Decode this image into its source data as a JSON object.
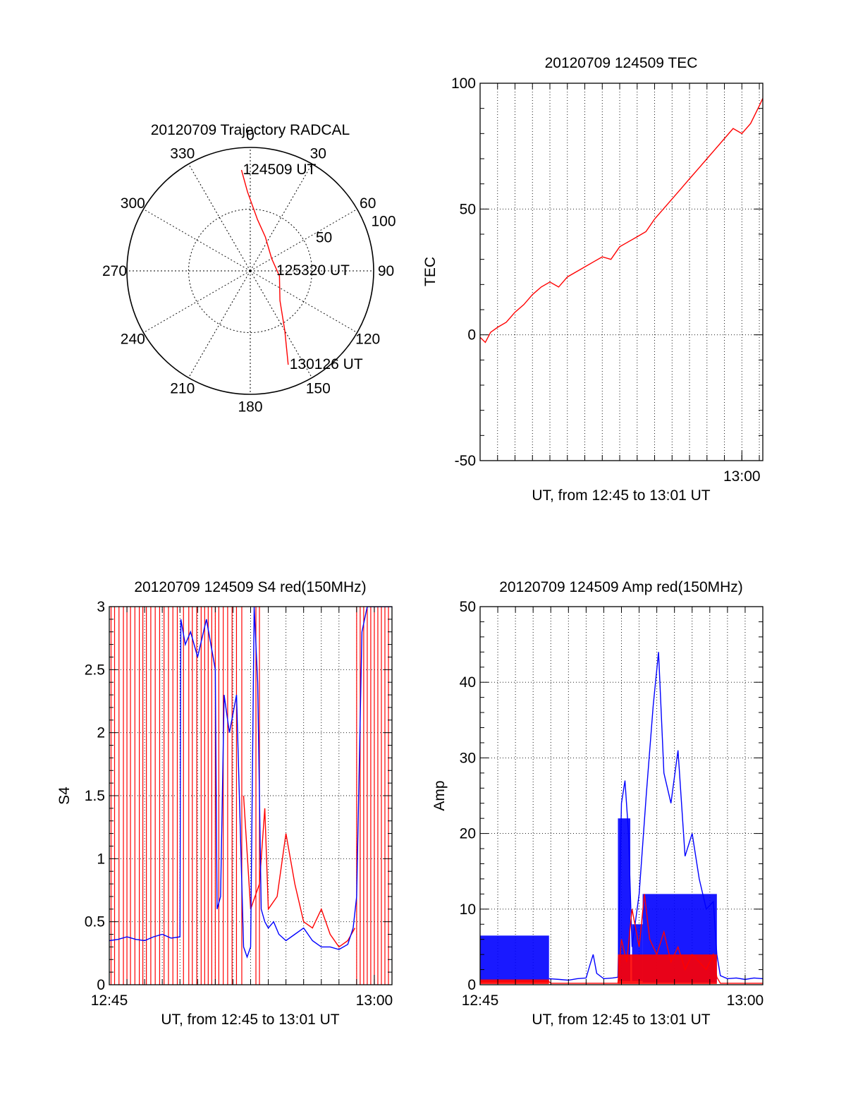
{
  "chart_data": [
    {
      "id": "polar",
      "type": "polar",
      "title": "20120709 Trajectory RADCAL",
      "azimuth_ticks": [
        "0",
        "30",
        "60",
        "90",
        "120",
        "150",
        "180",
        "210",
        "240",
        "270",
        "300",
        "330"
      ],
      "radial_ticks": [
        "50",
        "100"
      ],
      "rlim": [
        0,
        100
      ],
      "grid": true,
      "series": [
        {
          "color": "#ff0000",
          "points": [
            [
              -5,
              82
            ],
            [
              -2,
              64
            ],
            [
              8,
              42
            ],
            [
              24,
              30
            ],
            [
              60,
              20
            ],
            [
              100,
              24
            ],
            [
              135,
              34
            ],
            [
              150,
              56
            ],
            [
              158,
              82
            ]
          ]
        }
      ],
      "annotations": [
        {
          "text": "124509 UT",
          "az": -5,
          "r": 82
        },
        {
          "text": "125320 UT",
          "az": 90,
          "r": 20
        },
        {
          "text": "130126 UT",
          "az": 158,
          "r": 82
        }
      ]
    },
    {
      "id": "tec",
      "type": "line",
      "title": "20120709 124509 TEC",
      "xlabel": "UT, from 12:45 to 13:01 UT",
      "ylabel": "TEC",
      "xlim": [
        0,
        16.2
      ],
      "ylim": [
        -50,
        100
      ],
      "yticks": [
        "-50",
        "0",
        "50",
        "100"
      ],
      "xticks": [
        {
          "x": 15,
          "label": "13:00"
        }
      ],
      "grid": true,
      "series": [
        {
          "color": "#ff0000",
          "x": [
            0,
            0.3,
            0.6,
            1,
            1.5,
            2,
            2.5,
            3,
            3.5,
            4,
            4.5,
            5,
            5.5,
            6,
            6.5,
            7,
            7.5,
            8,
            8.5,
            9,
            9.5,
            10,
            10.5,
            11,
            11.5,
            12,
            12.5,
            13,
            13.5,
            14,
            14.5,
            15,
            15.5,
            16,
            16.2
          ],
          "y": [
            -1,
            -3,
            1,
            3,
            5,
            9,
            12,
            16,
            19,
            21,
            19,
            23,
            25,
            27,
            29,
            31,
            30,
            35,
            37,
            39,
            41,
            46,
            50,
            54,
            58,
            62,
            66,
            70,
            74,
            78,
            82,
            80,
            84,
            91,
            94
          ]
        }
      ]
    },
    {
      "id": "s4",
      "type": "line",
      "title": "20120709 124509 S4 red(150MHz)",
      "xlabel": "UT, from 12:45 to 13:01 UT",
      "ylabel": "S4",
      "xlim": [
        0,
        16
      ],
      "ylim": [
        0,
        3
      ],
      "yticks": [
        "0",
        "0.5",
        "1",
        "1.5",
        "2",
        "2.5",
        "3"
      ],
      "xticks": [
        {
          "x": 0,
          "label": "12:45"
        },
        {
          "x": 15,
          "label": "13:00"
        }
      ],
      "grid": true,
      "series": [
        {
          "name": "red",
          "color": "#ff0000",
          "spikes": [
            0.1,
            0.3,
            0.55,
            0.8,
            1.0,
            1.2,
            1.45,
            1.7,
            1.9,
            2.1,
            2.35,
            2.6,
            2.85,
            3.1,
            3.35,
            3.6,
            3.85,
            4.2,
            4.5,
            4.7,
            4.95,
            5.2,
            5.4,
            5.6,
            5.8,
            6.0,
            6.2,
            6.45,
            6.7,
            6.95,
            7.2,
            7.5,
            8.3,
            8.5,
            14.0,
            14.2,
            14.4,
            14.6,
            14.8,
            15.0,
            15.2,
            15.4,
            15.6,
            15.8
          ],
          "x": [
            7.6,
            8.0,
            8.5,
            8.8,
            9.0,
            9.5,
            10,
            10.5,
            11,
            11.5,
            12,
            12.5,
            13,
            13.5,
            13.9
          ],
          "y": [
            1.5,
            0.6,
            0.8,
            1.4,
            0.6,
            0.7,
            1.2,
            0.8,
            0.5,
            0.45,
            0.6,
            0.4,
            0.3,
            0.35,
            0.45
          ]
        },
        {
          "name": "blue",
          "color": "#0000ff",
          "x": [
            0,
            0.5,
            1,
            1.5,
            2,
            2.5,
            3,
            3.5,
            4,
            4.05,
            4.3,
            4.6,
            5,
            5.5,
            6,
            6.1,
            6.3,
            6.5,
            6.8,
            7.2,
            7.6,
            7.8,
            8.0,
            8.2,
            8.4,
            8.6,
            8.8,
            9.0,
            9.3,
            9.6,
            10,
            10.5,
            11,
            11.5,
            12,
            12.5,
            13,
            13.5,
            13.8,
            14,
            14.3,
            14.6,
            15,
            15.5,
            16
          ],
          "y": [
            0.35,
            0.36,
            0.38,
            0.36,
            0.35,
            0.38,
            0.4,
            0.37,
            0.38,
            2.9,
            2.7,
            2.8,
            2.6,
            2.9,
            2.5,
            0.6,
            0.7,
            2.3,
            2.0,
            2.3,
            0.3,
            0.22,
            0.3,
            3.0,
            2.4,
            0.6,
            0.5,
            0.45,
            0.5,
            0.4,
            0.35,
            0.4,
            0.45,
            0.35,
            0.3,
            0.3,
            0.28,
            0.32,
            0.45,
            0.7,
            2.8,
            3.0,
            3.0,
            3.0,
            3.0
          ]
        }
      ]
    },
    {
      "id": "amp",
      "type": "line",
      "title": "20120709 124509 Amp red(150MHz)",
      "xlabel": "UT, from 12:45 to 13:01 UT",
      "ylabel": "Amp",
      "xlim": [
        0,
        16
      ],
      "ylim": [
        0,
        50
      ],
      "yticks": [
        "0",
        "10",
        "20",
        "30",
        "40",
        "50"
      ],
      "xticks": [
        {
          "x": 0,
          "label": "12:45"
        },
        {
          "x": 15,
          "label": "13:00"
        }
      ],
      "grid": true,
      "series": [
        {
          "name": "blue",
          "color": "#0000ff",
          "bands": [
            {
              "x0": 0,
              "x1": 3.9,
              "lo": 0.5,
              "hi": 6.5
            },
            {
              "x0": 7.8,
              "x1": 8.5,
              "lo": 0.5,
              "hi": 22
            },
            {
              "x0": 8.6,
              "x1": 9.2,
              "lo": 0.5,
              "hi": 8
            },
            {
              "x0": 9.2,
              "x1": 13.4,
              "lo": 0.3,
              "hi": 12
            }
          ],
          "x": [
            3.9,
            4.5,
            5,
            5.5,
            6,
            6.2,
            6.4,
            6.6,
            7,
            7.5,
            7.8,
            8.0,
            8.2,
            8.4,
            8.6,
            9.0,
            9.4,
            9.8,
            10.1,
            10.4,
            10.8,
            11.2,
            11.6,
            12,
            12.4,
            12.8,
            13.2,
            13.4,
            13.6,
            14,
            14.5,
            15,
            15.5,
            16
          ],
          "y": [
            0.8,
            0.7,
            0.6,
            0.8,
            0.9,
            2.5,
            4,
            1.5,
            0.8,
            0.9,
            1,
            24,
            27,
            20,
            5,
            12,
            25,
            37,
            44,
            28,
            24,
            31,
            17,
            20,
            14,
            10,
            11,
            4,
            1.2,
            0.8,
            0.9,
            0.7,
            0.9,
            0.8
          ]
        },
        {
          "name": "red",
          "color": "#ff0000",
          "bands": [
            {
              "x0": 0,
              "x1": 3.9,
              "lo": 0.1,
              "hi": 0.7
            },
            {
              "x0": 7.8,
              "x1": 13.4,
              "lo": 0.1,
              "hi": 4
            }
          ],
          "x": [
            0,
            3.9,
            4,
            7.8,
            8.0,
            8.3,
            8.6,
            9.0,
            9.3,
            9.6,
            10,
            10.4,
            10.8,
            11.2,
            11.6,
            12,
            12.4,
            12.8,
            13.2,
            13.4,
            13.6,
            16
          ],
          "y": [
            0.4,
            0.4,
            0.2,
            0.2,
            6,
            3,
            10,
            5,
            12,
            6,
            4,
            7,
            3,
            5,
            2,
            4,
            3,
            2,
            4,
            1,
            0.2,
            0.2
          ]
        }
      ]
    }
  ]
}
